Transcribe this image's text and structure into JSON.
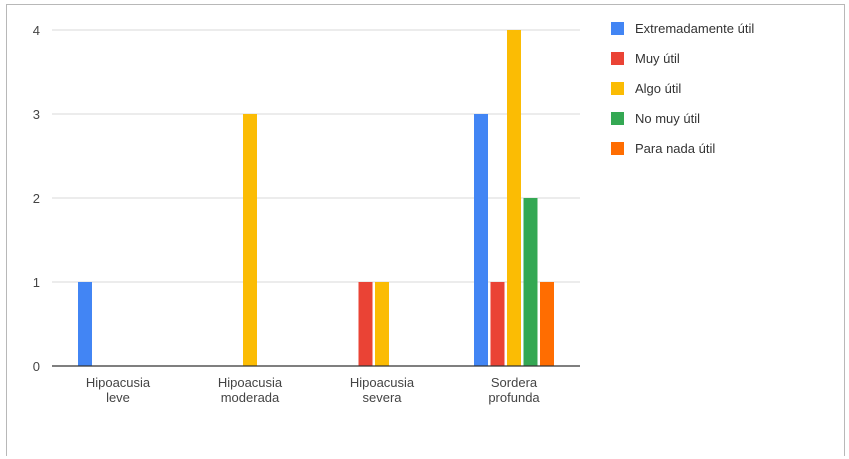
{
  "chart_data": {
    "type": "bar",
    "categories": [
      [
        "Hipoacusia",
        "leve"
      ],
      [
        "Hipoacusia",
        "moderada"
      ],
      [
        "Hipoacusia",
        "severa"
      ],
      [
        "Sordera",
        "profunda"
      ]
    ],
    "series": [
      {
        "name": "Extremadamente útil",
        "color": "#4285F4",
        "values": [
          1,
          0,
          0,
          3
        ]
      },
      {
        "name": "Muy útil",
        "color": "#EA4335",
        "values": [
          0,
          0,
          1,
          1
        ]
      },
      {
        "name": "Algo útil",
        "color": "#FBBC04",
        "values": [
          0,
          3,
          1,
          4
        ]
      },
      {
        "name": "No muy útil",
        "color": "#34A853",
        "values": [
          0,
          0,
          0,
          2
        ]
      },
      {
        "name": "Para nada útil",
        "color": "#FF6D01",
        "values": [
          0,
          0,
          0,
          1
        ]
      }
    ],
    "yticks": [
      0,
      1,
      2,
      3,
      4
    ],
    "ylim": [
      0,
      4
    ],
    "grid": true,
    "legend_position": "right",
    "title": "",
    "xlabel": "",
    "ylabel": ""
  }
}
